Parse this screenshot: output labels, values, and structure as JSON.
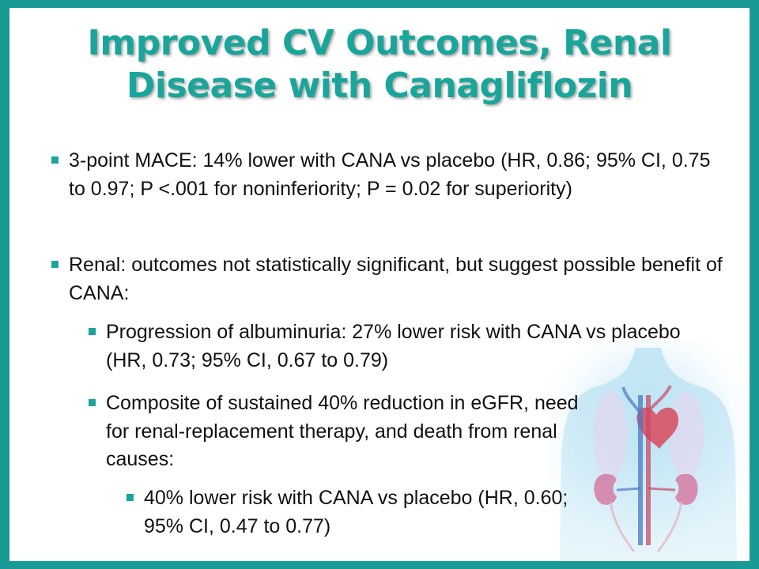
{
  "slide": {
    "title_line1": "Improved CV Outcomes, Renal",
    "title_line2": "Disease with Canagliflozin",
    "bullets": [
      {
        "level": 1,
        "text": "3-point MACE: 14% lower with CANA vs placebo (HR, 0.86; 95% CI, 0.75 to 0.97; P <.001 for noninferiority; P = 0.02 for superiority)"
      },
      {
        "level": 1,
        "text": "Renal: outcomes not statistically significant, but suggest possible benefit of CANA:"
      },
      {
        "level": 2,
        "text": "Progression of albuminuria: 27% lower risk with CANA vs placebo (HR, 0.73; 95% CI, 0.67 to 0.79)"
      },
      {
        "level": 2,
        "text": "Composite of sustained 40% reduction in eGFR, need for renal-replacement therapy, and death from renal causes:"
      },
      {
        "level": 3,
        "text": "40% lower risk with CANA vs placebo (HR, 0.60; 95% CI, 0.47 to 0.77)"
      }
    ]
  },
  "colors": {
    "border": "#1a9a94",
    "accent": "#1aa59a",
    "text": "#111111"
  },
  "icons": {
    "bullet": "teal-square-bullet",
    "illustration": "human-torso-heart-kidneys-illustration"
  }
}
